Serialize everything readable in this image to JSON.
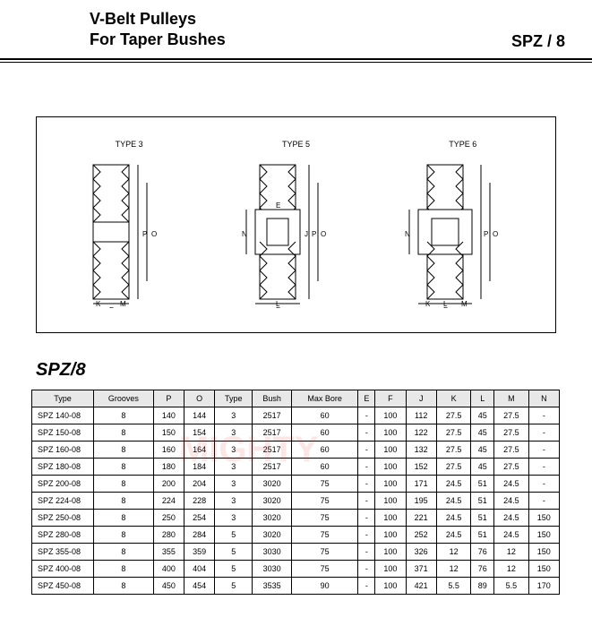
{
  "header": {
    "line1": "V-Belt  Pulleys",
    "line2": "For Taper Bushes",
    "right": "SPZ / 8"
  },
  "diagrams": {
    "label1": "TYPE 3",
    "label2": "TYPE 5",
    "label3": "TYPE 6"
  },
  "section_title": "SPZ/8",
  "table": {
    "columns": [
      "Type",
      "Grooves",
      "P",
      "O",
      "Type",
      "Bush",
      "Max Bore",
      "E",
      "F",
      "J",
      "K",
      "L",
      "M",
      "N"
    ],
    "rows": [
      [
        "SPZ  140-08",
        "8",
        "140",
        "144",
        "3",
        "2517",
        "60",
        "-",
        "100",
        "112",
        "27.5",
        "45",
        "27.5",
        "-"
      ],
      [
        "SPZ  150-08",
        "8",
        "150",
        "154",
        "3",
        "2517",
        "60",
        "-",
        "100",
        "122",
        "27.5",
        "45",
        "27.5",
        "-"
      ],
      [
        "SPZ  160-08",
        "8",
        "160",
        "164",
        "3",
        "2517",
        "60",
        "-",
        "100",
        "132",
        "27.5",
        "45",
        "27.5",
        "-"
      ],
      [
        "SPZ  180-08",
        "8",
        "180",
        "184",
        "3",
        "2517",
        "60",
        "-",
        "100",
        "152",
        "27.5",
        "45",
        "27.5",
        "-"
      ],
      [
        "SPZ  200-08",
        "8",
        "200",
        "204",
        "3",
        "3020",
        "75",
        "-",
        "100",
        "171",
        "24.5",
        "51",
        "24.5",
        "-"
      ],
      [
        "SPZ  224-08",
        "8",
        "224",
        "228",
        "3",
        "3020",
        "75",
        "-",
        "100",
        "195",
        "24.5",
        "51",
        "24.5",
        "-"
      ],
      [
        "SPZ  250-08",
        "8",
        "250",
        "254",
        "3",
        "3020",
        "75",
        "-",
        "100",
        "221",
        "24.5",
        "51",
        "24.5",
        "150"
      ],
      [
        "SPZ  280-08",
        "8",
        "280",
        "284",
        "5",
        "3020",
        "75",
        "-",
        "100",
        "252",
        "24.5",
        "51",
        "24.5",
        "150"
      ],
      [
        "SPZ  355-08",
        "8",
        "355",
        "359",
        "5",
        "3030",
        "75",
        "-",
        "100",
        "326",
        "12",
        "76",
        "12",
        "150"
      ],
      [
        "SPZ  400-08",
        "8",
        "400",
        "404",
        "5",
        "3030",
        "75",
        "-",
        "100",
        "371",
        "12",
        "76",
        "12",
        "150"
      ],
      [
        "SPZ  450-08",
        "8",
        "450",
        "454",
        "5",
        "3535",
        "90",
        "-",
        "100",
        "421",
        "5.5",
        "89",
        "5.5",
        "170"
      ]
    ]
  },
  "watermark": "MIGHTY",
  "styling": {
    "stroke": "#000000",
    "fill_none": "none",
    "header_bg": "#e8e8e8",
    "font_tiny": 9
  }
}
